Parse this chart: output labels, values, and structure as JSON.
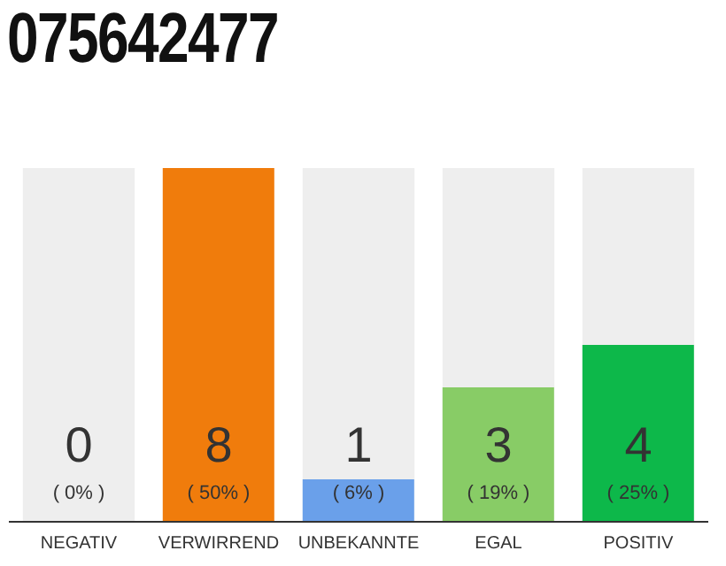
{
  "chart_data": {
    "type": "bar",
    "title": "075642477",
    "categories": [
      "NEGATIV",
      "VERWIRREND",
      "UNBEKANNTE",
      "EGAL",
      "POSITIV"
    ],
    "values": [
      0,
      50,
      6,
      19,
      25
    ],
    "colors": [
      "#999999",
      "#f07c0c",
      "#6aa0ea",
      "#88cc66",
      "#0db84a"
    ],
    "value_labels": [
      "( 0% )",
      "( 50% )",
      "( 6% )",
      "( 19% )",
      "( 25% )"
    ],
    "annotations": [
      "0",
      "8",
      "1",
      "3",
      "4"
    ],
    "bands": [
      {
        "axis": "x",
        "from": "NEGATIV",
        "to": "NEGATIV",
        "color": "#eeeeee"
      },
      {
        "axis": "x",
        "from": "UNBEKANNTE",
        "to": "UNBEKANNTE",
        "color": "#eeeeee"
      },
      {
        "axis": "x",
        "from": "EGAL",
        "to": "EGAL",
        "color": "#eeeeee"
      },
      {
        "axis": "x",
        "from": "POSITIV",
        "to": "POSITIV",
        "color": "#eeeeee"
      }
    ]
  }
}
